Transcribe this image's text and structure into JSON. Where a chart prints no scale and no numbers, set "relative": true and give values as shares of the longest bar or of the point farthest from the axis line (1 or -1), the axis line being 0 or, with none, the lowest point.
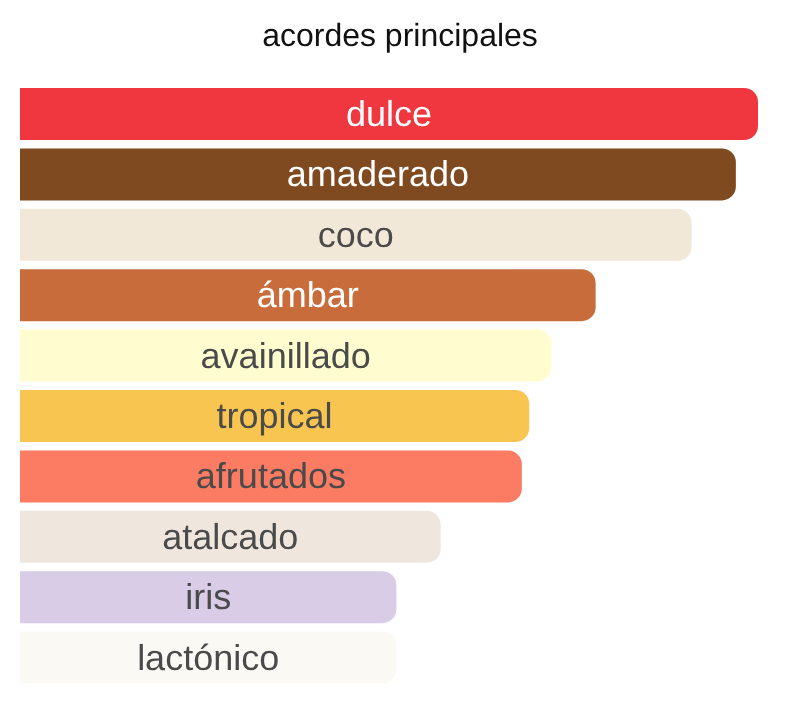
{
  "chart_data": {
    "type": "bar",
    "orientation": "horizontal",
    "relative": true,
    "title": "acordes principales",
    "categories": [
      "dulce",
      "amaderado",
      "coco",
      "ámbar",
      "avainillado",
      "tropical",
      "afrutados",
      "atalcado",
      "iris",
      "lactónico"
    ],
    "values": [
      1,
      0.97,
      0.91,
      0.78,
      0.72,
      0.69,
      0.68,
      0.57,
      0.51,
      0.51
    ],
    "colors": [
      "#f0363f",
      "#7f4a1f",
      "#f2e8d8",
      "#c96c3c",
      "#fffdd0",
      "#f8c650",
      "#fc7b63",
      "#efe6dd",
      "#d8cce6",
      "#fbf9f4"
    ]
  }
}
